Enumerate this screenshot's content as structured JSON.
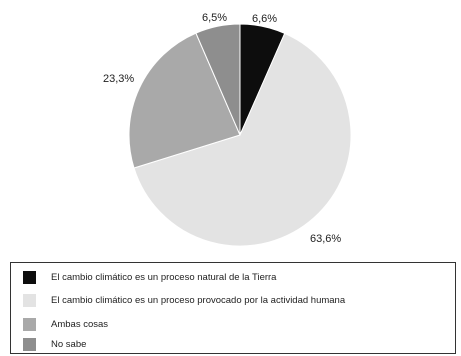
{
  "chart_data": {
    "type": "pie",
    "slices": [
      {
        "label": "El cambio climático es un proceso natural de la Tierra",
        "value": 6.6,
        "display": "6,6%",
        "color": "#0d0d0d"
      },
      {
        "label": "El cambio climático es un proceso provocado por la actividad humana",
        "value": 63.6,
        "display": "63,6%",
        "color": "#e3e3e3"
      },
      {
        "label": "Ambas cosas",
        "value": 23.3,
        "display": "23,3%",
        "color": "#a9a9a9"
      },
      {
        "label": "No sabe",
        "value": 6.5,
        "display": "6,5%",
        "color": "#8e8e8e"
      }
    ],
    "start": "12 o'clock",
    "direction": "clockwise",
    "legend": "bottom"
  }
}
